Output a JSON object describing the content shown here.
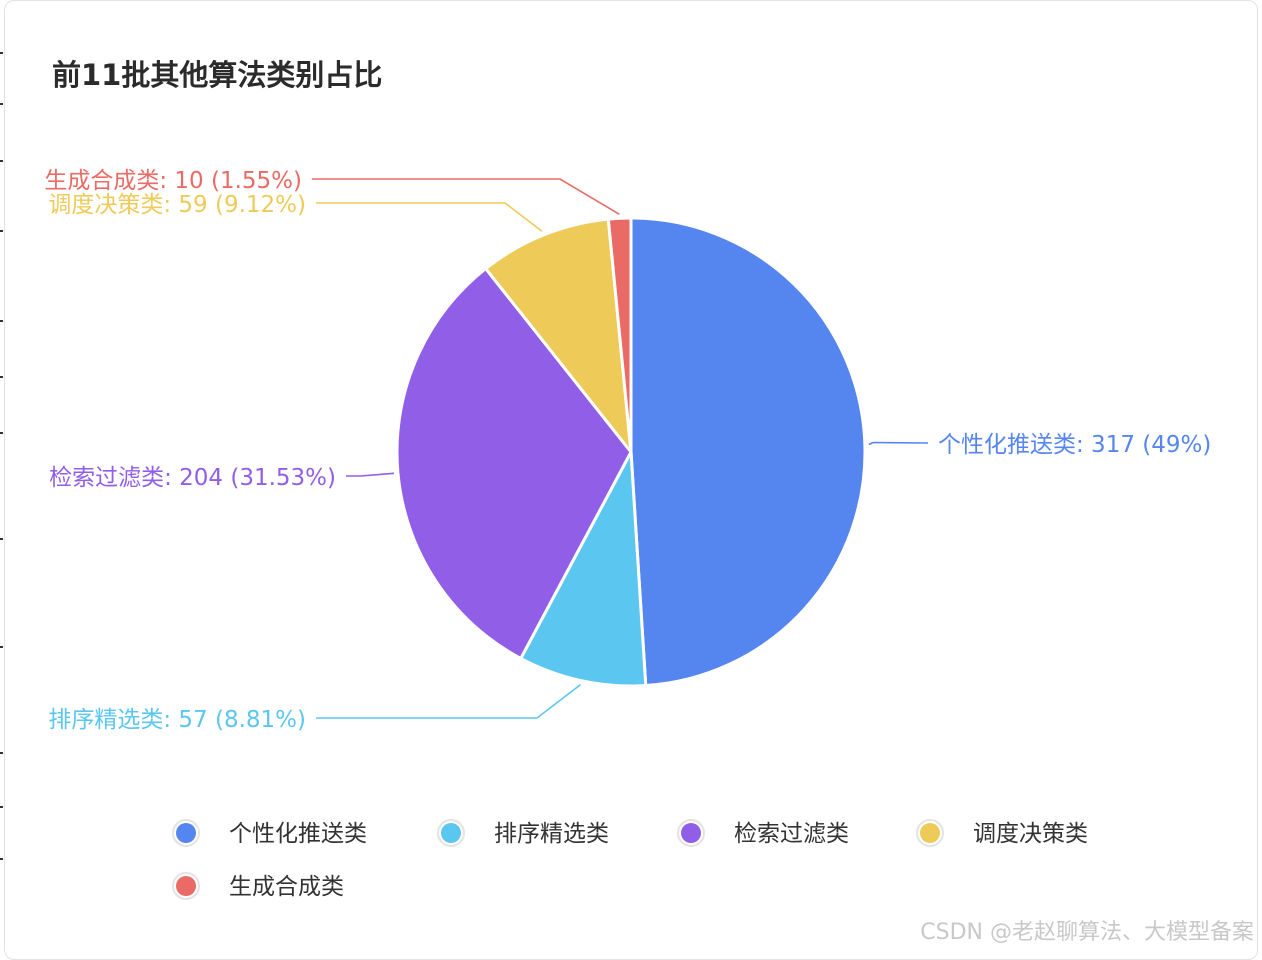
{
  "chart_data": {
    "type": "pie",
    "title": "前11批其他算法类别占比",
    "categories": [
      "个性化推送类",
      "排序精选类",
      "检索过滤类",
      "调度决策类",
      "生成合成类"
    ],
    "values": [
      317,
      57,
      204,
      59,
      10
    ],
    "percentages": [
      "49%",
      "8.81%",
      "31.53%",
      "9.12%",
      "1.55%"
    ],
    "slice_labels": [
      "个性化推送类: 317 (49%)",
      "排序精选类: 57 (8.81%)",
      "检索过滤类: 204 (31.53%)",
      "调度决策类: 59 (9.12%)",
      "生成合成类: 10 (1.55%)"
    ],
    "colors": [
      "#5586f0",
      "#5bc7f0",
      "#915ee8",
      "#eecb58",
      "#ea6b66"
    ],
    "legend": {
      "position": "bottom",
      "items": [
        "个性化推送类",
        "排序精选类",
        "检索过滤类",
        "调度决策类",
        "生成合成类"
      ]
    }
  },
  "watermark": "CSDN @老赵聊算法、大模型备案"
}
